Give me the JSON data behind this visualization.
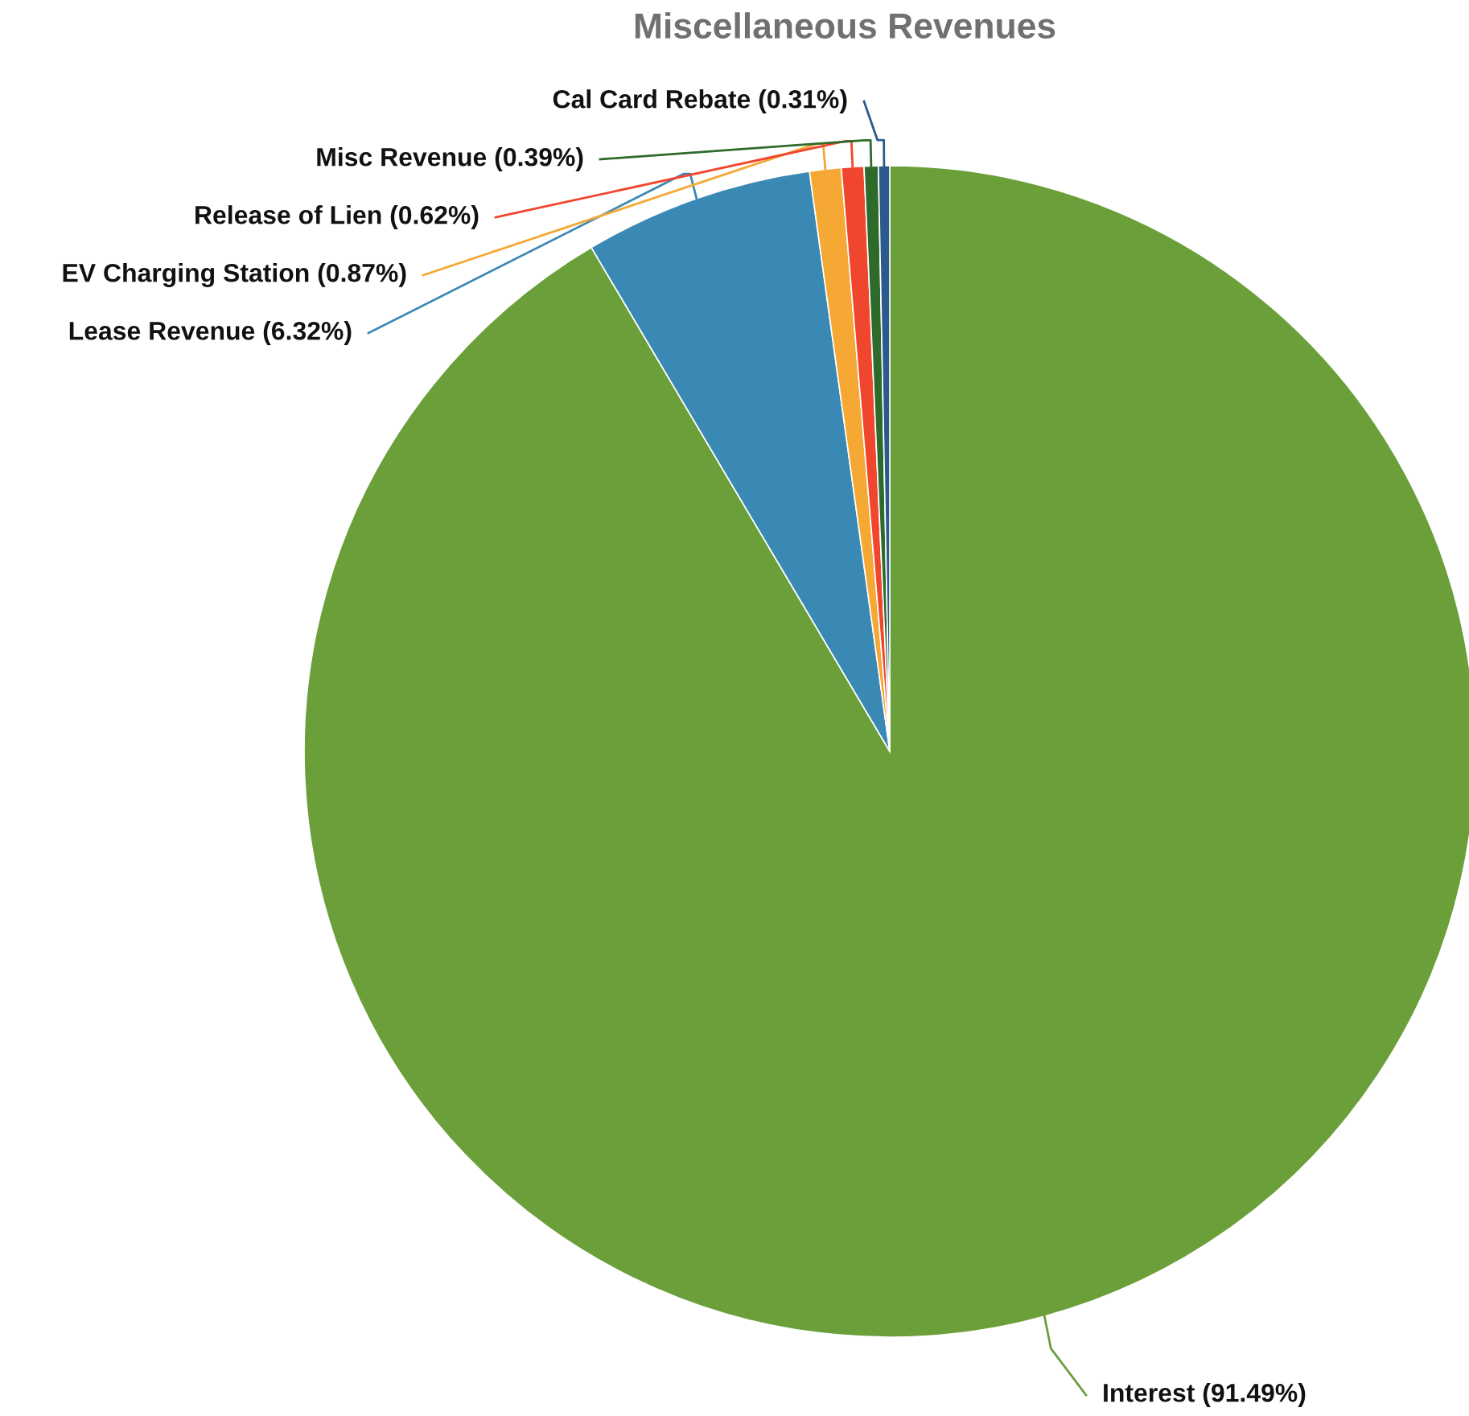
{
  "chart_data": {
    "type": "pie",
    "title": "Miscellaneous Revenues",
    "categories": [
      "Interest (91.49%)",
      "Lease Revenue (6.32%)",
      "EV Charging Station (0.87%)",
      "Release of Lien (0.62%)",
      "Misc Revenue (0.39%)",
      "Cal Card Rebate (0.31%)"
    ],
    "values": [
      91.49,
      6.32,
      0.87,
      0.62,
      0.39,
      0.31
    ],
    "colors": [
      "#6a9f3a",
      "#3a89b5",
      "#f5a833",
      "#f0462d",
      "#2e6b2a",
      "#2d5a8c"
    ]
  }
}
